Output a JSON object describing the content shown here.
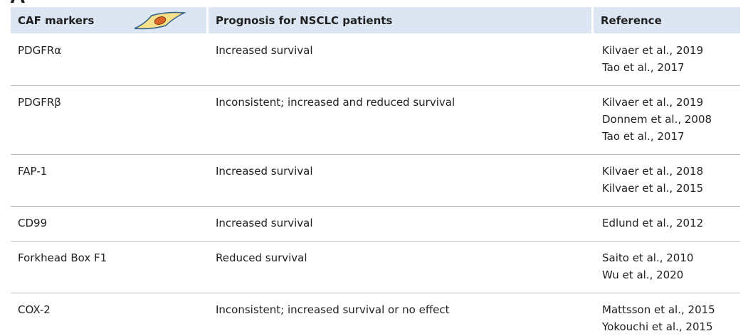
{
  "panel_label": "A",
  "table": {
    "header": [
      "CAF markers",
      "Prognosis for NSCLC patients",
      "Reference"
    ],
    "rows": [
      [
        "PDGFRα",
        "Increased survival",
        [
          "Kilvaer et al., 2019",
          "Tao et al., 2017"
        ]
      ],
      [
        "PDGFRβ",
        "Inconsistent; increased and reduced survival",
        [
          "Kilvaer et al., 2019",
          "Donnem et al., 2008",
          "Tao et al., 2017"
        ]
      ],
      [
        "FAP-1",
        "Increased survival",
        [
          "Kilvaer et al., 2018",
          "Kilvaer et al., 2015"
        ]
      ],
      [
        "CD99",
        "Increased survival",
        [
          "Edlund et al., 2012"
        ]
      ],
      [
        "Forkhead Box F1",
        "Reduced survival",
        [
          "Saito et al., 2010",
          "Wu et al., 2020"
        ]
      ],
      [
        "COX-2",
        "Inconsistent; increased survival or no effect",
        [
          "Mattsson et al., 2015",
          "Yokouchi et al., 2015"
        ]
      ]
    ]
  }
}
